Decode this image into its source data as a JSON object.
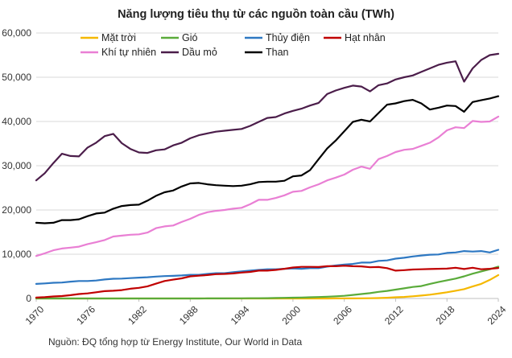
{
  "chart_data": {
    "type": "line",
    "title": "Năng lượng tiêu thụ từ các nguồn toàn cầu (TWh)",
    "source": "Nguồn: ĐQ tổng hợp từ Energy Institute, Our World in Data",
    "xlabel": "",
    "ylabel": "",
    "ylim": [
      0,
      60000
    ],
    "xlim": [
      1970,
      2024
    ],
    "y_ticks": [
      "0",
      "10,000",
      "20,000",
      "30,000",
      "40,000",
      "50,000",
      "60,000"
    ],
    "x_ticks": [
      "1970",
      "1976",
      "1982",
      "1988",
      "1994",
      "2000",
      "2006",
      "2012",
      "2018",
      "2024"
    ],
    "grid": "horizontal",
    "legend_position": "top",
    "x": [
      1970,
      1971,
      1972,
      1973,
      1974,
      1975,
      1976,
      1977,
      1978,
      1979,
      1980,
      1981,
      1982,
      1983,
      1984,
      1985,
      1986,
      1987,
      1988,
      1989,
      1990,
      1991,
      1992,
      1993,
      1994,
      1995,
      1996,
      1997,
      1998,
      1999,
      2000,
      2001,
      2002,
      2003,
      2004,
      2005,
      2006,
      2007,
      2008,
      2009,
      2010,
      2011,
      2012,
      2013,
      2014,
      2015,
      2016,
      2017,
      2018,
      2019,
      2020,
      2021,
      2022,
      2023,
      2024
    ],
    "series": [
      {
        "name": "Mặt trời",
        "color": "#f5b800",
        "values": [
          0,
          0,
          0,
          0,
          0,
          0,
          0,
          0,
          0,
          0,
          0,
          0,
          0,
          0,
          0,
          0,
          0,
          0,
          0,
          0,
          0,
          0,
          0,
          0,
          0,
          0,
          0,
          0,
          0,
          0,
          3,
          3,
          4,
          5,
          7,
          10,
          15,
          20,
          30,
          60,
          90,
          170,
          270,
          350,
          500,
          650,
          850,
          1100,
          1400,
          1750,
          2100,
          2700,
          3300,
          4200,
          5300
        ]
      },
      {
        "name": "Gió",
        "color": "#5aab3a",
        "values": [
          0,
          0,
          0,
          0,
          0,
          0,
          0,
          0,
          0,
          0,
          0,
          0,
          0,
          0,
          0,
          0,
          0,
          0,
          0,
          5,
          10,
          15,
          20,
          30,
          40,
          50,
          60,
          80,
          110,
          140,
          180,
          220,
          270,
          330,
          400,
          500,
          600,
          800,
          1000,
          1200,
          1500,
          1700,
          2000,
          2300,
          2600,
          2800,
          3300,
          3700,
          4100,
          4500,
          5000,
          5600,
          6100,
          6600,
          7200
        ]
      },
      {
        "name": "Thủy điện",
        "color": "#2e78c2",
        "values": [
          3300,
          3400,
          3550,
          3600,
          3800,
          3950,
          3950,
          4050,
          4300,
          4450,
          4500,
          4600,
          4700,
          4800,
          4950,
          5050,
          5100,
          5200,
          5350,
          5350,
          5550,
          5700,
          5700,
          5950,
          6100,
          6300,
          6450,
          6600,
          6600,
          6700,
          6800,
          6700,
          6850,
          6850,
          7200,
          7450,
          7650,
          7800,
          8100,
          8100,
          8500,
          8600,
          9000,
          9200,
          9500,
          9700,
          9900,
          9950,
          10300,
          10400,
          10700,
          10600,
          10700,
          10400,
          11000
        ]
      },
      {
        "name": "Hạt nhân",
        "color": "#c00000",
        "values": [
          200,
          300,
          450,
          550,
          750,
          1000,
          1150,
          1400,
          1650,
          1750,
          1900,
          2200,
          2400,
          2750,
          3350,
          3950,
          4250,
          4550,
          5000,
          5150,
          5300,
          5500,
          5550,
          5650,
          5850,
          6000,
          6300,
          6300,
          6450,
          6700,
          7000,
          7150,
          7150,
          7100,
          7300,
          7300,
          7400,
          7300,
          7250,
          7050,
          7100,
          6850,
          6300,
          6400,
          6550,
          6600,
          6650,
          6700,
          6750,
          6950,
          6650,
          6950,
          6600,
          6700,
          6900
        ]
      },
      {
        "name": "Khí tự nhiên",
        "color": "#e97fd4",
        "values": [
          9600,
          10200,
          10900,
          11300,
          11500,
          11700,
          12300,
          12700,
          13200,
          14000,
          14200,
          14400,
          14500,
          14900,
          15900,
          16300,
          16500,
          17300,
          18000,
          18900,
          19500,
          19800,
          20000,
          20300,
          20500,
          21300,
          22300,
          22300,
          22700,
          23300,
          24100,
          24300,
          25100,
          25800,
          26700,
          27300,
          28000,
          29100,
          29800,
          29300,
          31500,
          32200,
          33100,
          33600,
          33800,
          34500,
          35200,
          36400,
          38000,
          38700,
          38500,
          40100,
          39900,
          40000,
          41100
        ]
      },
      {
        "name": "Dầu mỏ",
        "color": "#4b1d4a",
        "values": [
          26700,
          28300,
          30600,
          32700,
          32200,
          32100,
          34100,
          35200,
          36700,
          37200,
          35100,
          33800,
          33000,
          32900,
          33500,
          33700,
          34600,
          35200,
          36200,
          36900,
          37300,
          37700,
          37900,
          38100,
          38300,
          39000,
          39900,
          40800,
          41000,
          41800,
          42400,
          42900,
          43600,
          44200,
          46200,
          47000,
          47600,
          48100,
          47900,
          46800,
          48200,
          48600,
          49500,
          50000,
          50400,
          51200,
          52000,
          52800,
          53300,
          53600,
          49000,
          52000,
          53900,
          55000,
          55300
        ]
      },
      {
        "name": "Than",
        "color": "#000000",
        "values": [
          17100,
          17000,
          17100,
          17700,
          17700,
          17900,
          18600,
          19200,
          19400,
          20300,
          20900,
          21100,
          21200,
          22100,
          23200,
          24000,
          24400,
          25300,
          26000,
          26100,
          25800,
          25600,
          25500,
          25400,
          25500,
          25800,
          26300,
          26400,
          26400,
          26600,
          27600,
          27800,
          29000,
          31500,
          33900,
          35700,
          37800,
          39900,
          40400,
          40000,
          41900,
          43800,
          44100,
          44600,
          44900,
          44100,
          42700,
          43100,
          43600,
          43500,
          42200,
          44400,
          44800,
          45200,
          45700
        ]
      }
    ]
  }
}
